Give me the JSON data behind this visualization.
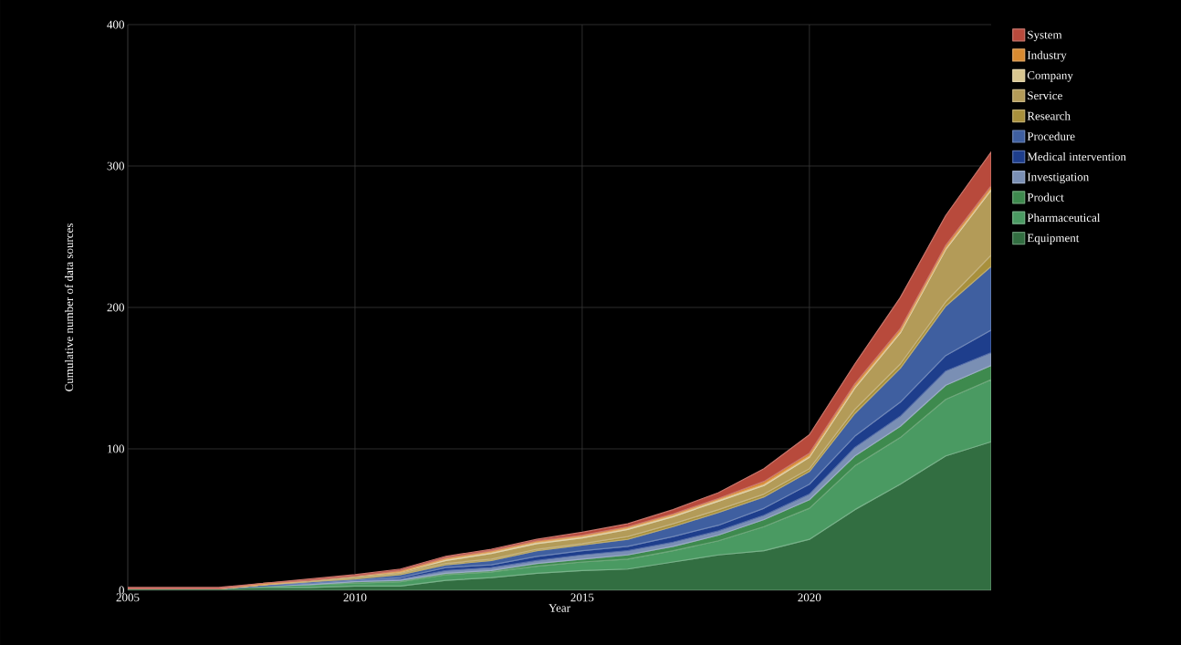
{
  "chart_data": {
    "type": "area",
    "stacked": true,
    "xlabel": "Year",
    "ylabel": "Cumulative number of data sources",
    "x": [
      2005,
      2006,
      2007,
      2008,
      2009,
      2010,
      2011,
      2012,
      2013,
      2014,
      2015,
      2016,
      2017,
      2018,
      2019,
      2020,
      2021,
      2022,
      2023,
      2024
    ],
    "xlim": [
      2005,
      2024
    ],
    "xticks": [
      2005,
      2010,
      2015,
      2020
    ],
    "ylim": [
      0,
      400
    ],
    "yticks": [
      0,
      100,
      200,
      300,
      400
    ],
    "grid": true,
    "legend": "right",
    "series": [
      {
        "name": "Equipment",
        "color": "#326e41",
        "values": [
          1,
          1,
          1,
          2,
          2,
          3,
          3,
          7,
          9,
          12,
          14,
          15,
          20,
          25,
          28,
          36,
          57,
          75,
          95,
          105
        ]
      },
      {
        "name": "Pharmaceutical",
        "color": "#4a9a62",
        "values": [
          0,
          0,
          0,
          1,
          2,
          2,
          3,
          4,
          4,
          5,
          6,
          7,
          8,
          10,
          17,
          22,
          31,
          33,
          40,
          44
        ]
      },
      {
        "name": "Product",
        "color": "#3e8a4e",
        "values": [
          0,
          0,
          0,
          0,
          0,
          1,
          1,
          1,
          1,
          2,
          2,
          3,
          3,
          4,
          5,
          6,
          7,
          8,
          10,
          10
        ]
      },
      {
        "name": "Investigation",
        "color": "#7a8fb4",
        "values": [
          0,
          0,
          0,
          0,
          1,
          1,
          1,
          2,
          2,
          2,
          3,
          3,
          3,
          3,
          3,
          4,
          6,
          7,
          10,
          9
        ]
      },
      {
        "name": "Medical intervention",
        "color": "#1e3e8c",
        "values": [
          0,
          0,
          0,
          1,
          0,
          0,
          1,
          2,
          2,
          3,
          3,
          3,
          4,
          4,
          5,
          7,
          8,
          10,
          11,
          16
        ]
      },
      {
        "name": "Procedure",
        "color": "#3f5fa0",
        "values": [
          0,
          0,
          0,
          0,
          1,
          1,
          2,
          2,
          3,
          4,
          4,
          5,
          7,
          9,
          8,
          9,
          16,
          24,
          35,
          45
        ]
      },
      {
        "name": "Research",
        "color": "#a8903c",
        "values": [
          0,
          0,
          0,
          0,
          0,
          1,
          1,
          1,
          1,
          1,
          1,
          2,
          2,
          2,
          2,
          2,
          3,
          3,
          3,
          8
        ]
      },
      {
        "name": "Service",
        "color": "#b39b58",
        "values": [
          0,
          0,
          0,
          0,
          1,
          1,
          1,
          2,
          4,
          4,
          4,
          5,
          5,
          6,
          6,
          8,
          15,
          22,
          37,
          46
        ]
      },
      {
        "name": "Company",
        "color": "#d8c690",
        "values": [
          0,
          0,
          0,
          0,
          0,
          0,
          0,
          1,
          1,
          1,
          1,
          1,
          1,
          1,
          1,
          1,
          1,
          1,
          1,
          1
        ]
      },
      {
        "name": "Industry",
        "color": "#d88a30",
        "values": [
          0,
          0,
          0,
          1,
          0,
          0,
          1,
          1,
          1,
          1,
          1,
          1,
          1,
          1,
          2,
          2,
          2,
          2,
          2,
          2
        ]
      },
      {
        "name": "System",
        "color": "#b84a3c",
        "values": [
          1,
          1,
          1,
          0,
          1,
          1,
          1,
          1,
          1,
          1,
          2,
          2,
          3,
          4,
          9,
          13,
          14,
          22,
          21,
          24
        ]
      }
    ]
  }
}
